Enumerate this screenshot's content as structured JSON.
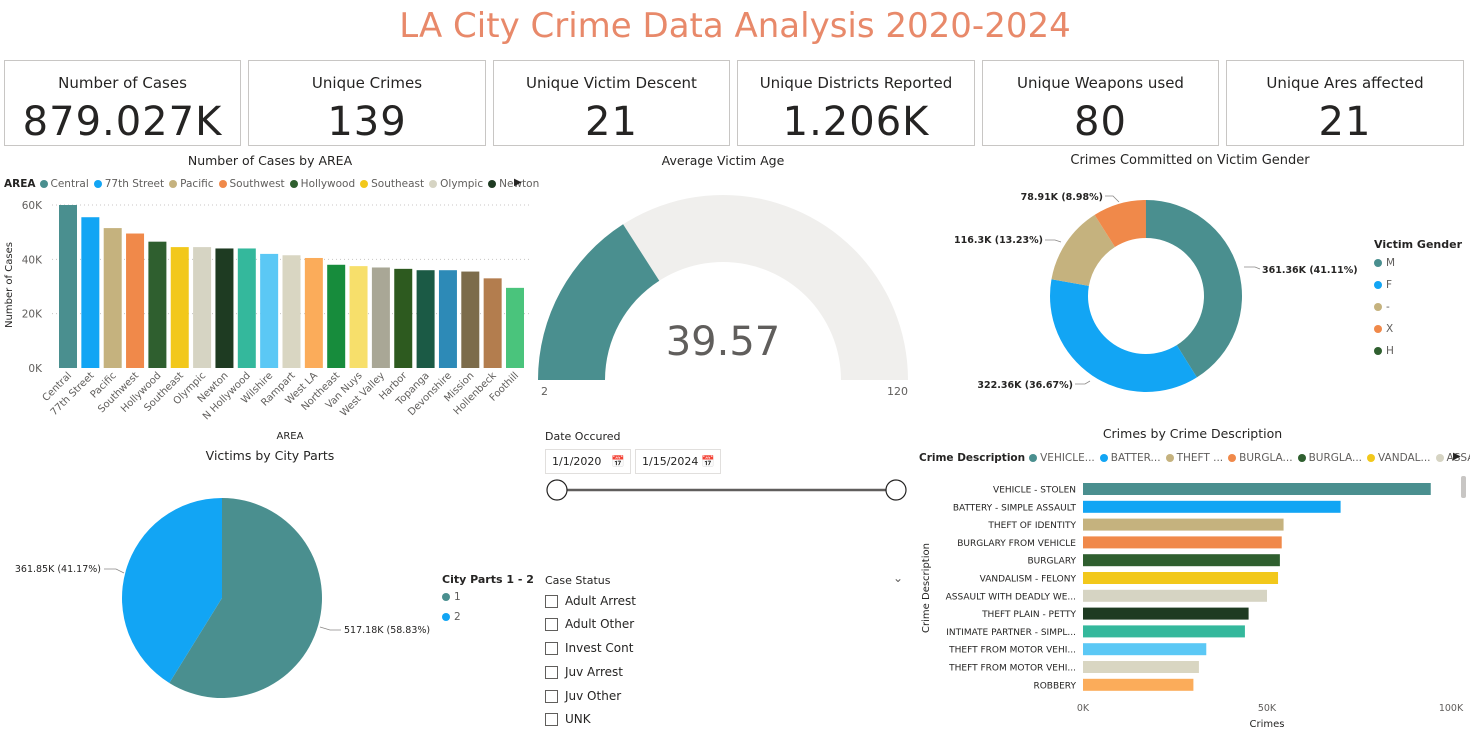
{
  "page_title": "LA City Crime Data Analysis 2020-2024",
  "cards": [
    {
      "label": "Number of Cases",
      "value": "879.027K"
    },
    {
      "label": "Unique Crimes",
      "value": "139"
    },
    {
      "label": "Unique Victim Descent",
      "value": "21"
    },
    {
      "label": "Unique Districts Reported",
      "value": "1.206K"
    },
    {
      "label": "Unique Weapons used",
      "value": "80"
    },
    {
      "label": "Unique Ares affected",
      "value": "21"
    }
  ],
  "area_chart": {
    "title": "Number of Cases by AREA",
    "legend_title": "AREA",
    "legend_items": [
      {
        "label": "Central",
        "color": "#4a8f8f"
      },
      {
        "label": "77th Street",
        "color": "#12a5f4"
      },
      {
        "label": "Pacific",
        "color": "#c5b27e"
      },
      {
        "label": "Southwest",
        "color": "#f0894a"
      },
      {
        "label": "Hollywood",
        "color": "#2f5f2f"
      },
      {
        "label": "Southeast",
        "color": "#f2c81b"
      },
      {
        "label": "Olympic",
        "color": "#d6d4c3"
      },
      {
        "label": "Newton",
        "color": "#1e3b22"
      }
    ],
    "legend_more_icon": "chevron-right-icon"
  },
  "gauge": {
    "title": "Average Victim Age",
    "value_label": "39.57",
    "min_label": "2",
    "max_label": "120"
  },
  "gender_chart": {
    "title": "Crimes Committed on Victim Gender",
    "legend_title": "Victim Gender",
    "legend_items": [
      {
        "label": "M",
        "color": "#4a8f8f"
      },
      {
        "label": "F",
        "color": "#12a5f4"
      },
      {
        "label": "-",
        "color": "#c5b27e"
      },
      {
        "label": "X",
        "color": "#f0894a"
      },
      {
        "label": "H",
        "color": "#2f5f2f"
      }
    ],
    "labels": [
      "361.36K (41.11%)",
      "322.36K (36.67%)",
      "116.3K (13.23%)",
      "78.91K (8.98%)"
    ]
  },
  "cityparts_chart": {
    "title": "Victims by City Parts",
    "legend_title": "City Parts 1 - 2",
    "legend_items": [
      {
        "label": "1",
        "color": "#4a8f8f"
      },
      {
        "label": "2",
        "color": "#12a5f4"
      }
    ],
    "labels": [
      "361.85K (41.17%)",
      "517.18K (58.83%)"
    ]
  },
  "date_slicer": {
    "title": "Date Occured",
    "start": "1/1/2020",
    "end": "1/15/2024",
    "calendar_icon": "calendar-icon"
  },
  "case_status": {
    "title": "Case Status",
    "options": [
      "Adult Arrest",
      "Adult Other",
      "Invest Cont",
      "Juv Arrest",
      "Juv Other",
      "UNK"
    ],
    "collapse_icon": "chevron-down-icon"
  },
  "crime_desc_chart": {
    "title": "Crimes by Crime Description",
    "legend_title": "Crime Description",
    "legend_items": [
      {
        "label": "VEHICLE...",
        "color": "#4a8f8f"
      },
      {
        "label": "BATTER...",
        "color": "#12a5f4"
      },
      {
        "label": "THEFT ...",
        "color": "#c5b27e"
      },
      {
        "label": "BURGLA...",
        "color": "#f0894a"
      },
      {
        "label": "BURGLA...",
        "color": "#2f5f2f"
      },
      {
        "label": "VANDAL...",
        "color": "#f2c81b"
      },
      {
        "label": "ASSAUL...",
        "color": "#d6d4c3"
      }
    ],
    "legend_more_icon": "chevron-right-icon"
  },
  "chart_data": [
    {
      "type": "bar",
      "title": "Number of Cases by AREA",
      "xlabel": "AREA",
      "ylabel": "Number of Cases",
      "ylim": [
        0,
        60000
      ],
      "yticks": [
        "0K",
        "20K",
        "40K",
        "60K"
      ],
      "grid": true,
      "legend": "top",
      "categories": [
        "Central",
        "77th Street",
        "Pacific",
        "Southwest",
        "Hollywood",
        "Southeast",
        "Olympic",
        "Newton",
        "N Hollywood",
        "Wilshire",
        "Rampart",
        "West LA",
        "Northeast",
        "Van Nuys",
        "West Valley",
        "Harbor",
        "Topanga",
        "Devonshire",
        "Mission",
        "Hollenbeck",
        "Foothill"
      ],
      "values": [
        60000,
        55500,
        51500,
        49500,
        46500,
        44500,
        44500,
        44000,
        44000,
        42000,
        41500,
        40500,
        38000,
        37500,
        37000,
        36500,
        36000,
        36000,
        35500,
        33000,
        29500
      ],
      "colors": [
        "#4a8f8f",
        "#12a5f4",
        "#c5b27e",
        "#f0894a",
        "#2f5f2f",
        "#f2c81b",
        "#d6d4c3",
        "#1e3b22",
        "#34b89c",
        "#5bc8f5",
        "#d9d6c2",
        "#fbac5a",
        "#178c3c",
        "#f7df6b",
        "#a9a796",
        "#2d5a1f",
        "#1b5a45",
        "#2d8ab7",
        "#7c6c4b",
        "#b37d4e",
        "#4ac47c"
      ]
    },
    {
      "type": "gauge",
      "title": "Average Victim Age",
      "value": 39.57,
      "min": 2,
      "max": 120
    },
    {
      "type": "donut",
      "title": "Crimes Committed on Victim Gender",
      "categories": [
        "M",
        "F",
        "-",
        "X",
        "H"
      ],
      "values": [
        361360,
        322360,
        116300,
        78910,
        100
      ],
      "percents": [
        41.11,
        36.67,
        13.23,
        8.98,
        0.01
      ],
      "colors": [
        "#4a8f8f",
        "#12a5f4",
        "#c5b27e",
        "#f0894a",
        "#2f5f2f"
      ],
      "legend": "right"
    },
    {
      "type": "pie",
      "title": "Victims by City Parts",
      "categories": [
        "1",
        "2"
      ],
      "values": [
        517180,
        361850
      ],
      "percents": [
        58.83,
        41.17
      ],
      "colors": [
        "#4a8f8f",
        "#12a5f4"
      ],
      "legend": "right"
    },
    {
      "type": "bar",
      "orientation": "horizontal",
      "title": "Crimes by Crime Description",
      "xlabel": "Crimes",
      "ylabel": "Crime Description",
      "xlim": [
        0,
        100000
      ],
      "xticks": [
        "0K",
        "50K",
        "100K"
      ],
      "legend": "top",
      "categories": [
        "VEHICLE - STOLEN",
        "BATTERY - SIMPLE ASSAULT",
        "THEFT OF IDENTITY",
        "BURGLARY FROM VEHICLE",
        "BURGLARY",
        "VANDALISM - FELONY",
        "ASSAULT WITH DEADLY WE...",
        "THEFT PLAIN - PETTY",
        "INTIMATE PARTNER - SIMPL...",
        "THEFT FROM MOTOR VEHI...",
        "THEFT FROM MOTOR VEHI...",
        "ROBBERY"
      ],
      "values": [
        94500,
        70000,
        54500,
        54000,
        53500,
        53000,
        50000,
        45000,
        44000,
        33500,
        31500,
        30000
      ],
      "colors": [
        "#4a8f8f",
        "#12a5f4",
        "#c5b27e",
        "#f0894a",
        "#2f5f2f",
        "#f2c81b",
        "#d6d4c3",
        "#1e3b22",
        "#34b89c",
        "#5bc8f5",
        "#d9d6c2",
        "#fbac5a"
      ]
    }
  ]
}
